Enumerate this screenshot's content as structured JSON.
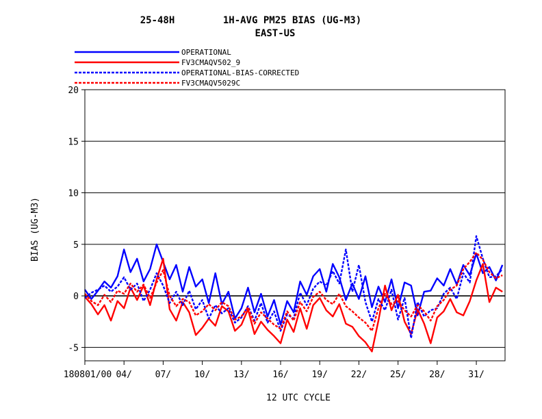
{
  "chart_data": {
    "type": "line",
    "title_line1_left": "25-48H",
    "title_line1_right": "1H-AVG PM25 BIAS (UG-M3)",
    "title_line2": "EAST-US",
    "xlabel": "12 UTC CYCLE",
    "ylabel": "BIAS (UG-M3)",
    "ylim": [
      -6.3,
      20
    ],
    "yticks": [
      -5,
      0,
      5,
      10,
      15,
      20
    ],
    "ytick_labels": [
      "-5",
      "0",
      "5",
      "10",
      "15",
      "20"
    ],
    "xlim": [
      1,
      33.2
    ],
    "xticks": [
      1,
      4,
      7,
      10,
      13,
      16,
      19,
      22,
      25,
      28,
      31
    ],
    "xtick_labels": [
      "180801/00",
      "04/",
      "07/",
      "10/",
      "13/",
      "16/",
      "19/",
      "22/",
      "25/",
      "28/",
      "31/"
    ],
    "grid": "horizontal",
    "legend_position": "top-left",
    "zero_line": true,
    "series": [
      {
        "name": "OPERATIONAL",
        "color": "#0000ff",
        "style": "solid",
        "x": [
          1.0,
          1.5,
          2.0,
          2.5,
          3.0,
          3.5,
          4.0,
          4.5,
          5.0,
          5.5,
          6.0,
          6.5,
          7.0,
          7.5,
          8.0,
          8.5,
          9.0,
          9.5,
          10.0,
          10.5,
          11.0,
          11.5,
          12.0,
          12.5,
          13.0,
          13.5,
          14.0,
          14.5,
          15.0,
          15.5,
          16.0,
          16.5,
          17.0,
          17.5,
          18.0,
          18.5,
          19.0,
          19.5,
          20.0,
          20.5,
          21.0,
          21.5,
          22.0,
          22.5,
          23.0,
          23.5,
          24.0,
          24.5,
          25.0,
          25.5,
          26.0,
          26.5,
          27.0,
          27.5,
          28.0,
          28.5,
          29.0,
          29.5,
          30.0,
          30.5,
          31.0,
          31.5,
          32.0,
          32.5,
          33.0
        ],
        "y": [
          0.6,
          -0.3,
          0.5,
          1.4,
          0.8,
          1.9,
          4.5,
          2.3,
          3.6,
          1.4,
          2.6,
          5.0,
          3.3,
          1.6,
          3.0,
          0.4,
          2.8,
          0.9,
          1.6,
          -0.7,
          2.2,
          -0.8,
          0.4,
          -2.2,
          -1.2,
          0.8,
          -1.6,
          0.2,
          -2.0,
          -0.4,
          -2.8,
          -0.5,
          -1.6,
          1.4,
          0.1,
          1.9,
          2.6,
          0.4,
          3.1,
          1.8,
          -0.4,
          1.2,
          -0.3,
          1.9,
          -1.1,
          0.9,
          -0.6,
          1.6,
          -1.2,
          1.3,
          1.0,
          -1.9,
          0.4,
          0.5,
          1.7,
          1.0,
          2.6,
          1.1,
          3.0,
          2.0,
          4.1,
          2.2,
          2.8,
          1.5,
          3.0
        ]
      },
      {
        "name": "FV3CMAQV502_9",
        "color": "#ff0000",
        "style": "solid",
        "x": [
          1.0,
          1.5,
          2.0,
          2.5,
          3.0,
          3.5,
          4.0,
          4.5,
          5.0,
          5.5,
          6.0,
          6.5,
          7.0,
          7.5,
          8.0,
          8.5,
          9.0,
          9.5,
          10.0,
          10.5,
          11.0,
          11.5,
          12.0,
          12.5,
          13.0,
          13.5,
          14.0,
          14.5,
          15.0,
          15.5,
          16.0,
          16.5,
          17.0,
          17.5,
          18.0,
          18.5,
          19.0,
          19.5,
          20.0,
          20.5,
          21.0,
          21.5,
          22.0,
          22.5,
          23.0,
          23.5,
          24.0,
          24.5,
          25.0,
          25.5,
          26.0,
          26.5,
          27.0,
          27.5,
          28.0,
          28.5,
          29.0,
          29.5,
          30.0,
          30.5,
          31.0,
          31.5,
          32.0,
          32.5,
          33.0
        ],
        "y": [
          -0.1,
          -0.8,
          -1.8,
          -0.9,
          -2.4,
          -0.5,
          -1.2,
          0.8,
          -0.4,
          1.0,
          -0.9,
          1.6,
          3.6,
          -1.3,
          -2.4,
          -0.6,
          -1.6,
          -3.8,
          -3.1,
          -2.2,
          -2.9,
          -1.0,
          -1.5,
          -3.4,
          -2.8,
          -1.3,
          -3.7,
          -2.5,
          -3.3,
          -3.9,
          -4.6,
          -2.3,
          -3.5,
          -1.2,
          -3.2,
          -0.9,
          -0.2,
          -1.4,
          -2.0,
          -0.8,
          -2.7,
          -3.0,
          -3.9,
          -4.5,
          -5.4,
          -2.4,
          1.0,
          -1.4,
          0.1,
          -2.5,
          -3.7,
          -1.3,
          -2.7,
          -4.6,
          -2.1,
          -1.5,
          -0.3,
          -1.6,
          -1.9,
          -0.5,
          1.5,
          3.1,
          -0.6,
          0.8,
          0.4
        ]
      },
      {
        "name": "OPERATIONAL-BIAS-CORRECTED",
        "color": "#0000ff",
        "style": "dashed",
        "x": [
          1.0,
          1.5,
          2.0,
          2.5,
          3.0,
          3.5,
          4.0,
          4.5,
          5.0,
          5.5,
          6.0,
          6.5,
          7.0,
          7.5,
          8.0,
          8.5,
          9.0,
          9.5,
          10.0,
          10.5,
          11.0,
          11.5,
          12.0,
          12.5,
          13.0,
          13.5,
          14.0,
          14.5,
          15.0,
          15.5,
          16.0,
          16.5,
          17.0,
          17.5,
          18.0,
          18.5,
          19.0,
          19.5,
          20.0,
          20.5,
          21.0,
          21.5,
          22.0,
          22.5,
          23.0,
          23.5,
          24.0,
          24.5,
          25.0,
          25.5,
          26.0,
          26.5,
          27.0,
          27.5,
          28.0,
          28.5,
          29.0,
          29.5,
          30.0,
          30.5,
          31.0,
          31.5,
          32.0,
          32.5,
          33.0
        ],
        "y": [
          -0.2,
          0.3,
          0.6,
          1.0,
          0.4,
          0.9,
          1.8,
          0.6,
          1.2,
          -0.5,
          0.6,
          2.2,
          1.0,
          -0.7,
          0.4,
          -0.9,
          0.5,
          -1.3,
          -0.4,
          -2.2,
          -0.9,
          -1.7,
          -1.2,
          -2.6,
          -2.1,
          -1.0,
          -2.4,
          -0.7,
          -2.6,
          -1.5,
          -3.4,
          -1.8,
          -2.2,
          0.3,
          -0.9,
          0.7,
          1.4,
          1.0,
          2.4,
          1.2,
          4.5,
          0.4,
          3.0,
          -0.6,
          -2.5,
          -0.3,
          -1.4,
          0.6,
          -2.3,
          -0.2,
          -4.1,
          -0.6,
          -2.0,
          -1.4,
          -1.2,
          0.2,
          0.8,
          -0.3,
          2.2,
          1.3,
          5.8,
          3.6,
          1.8,
          1.9,
          2.6
        ]
      },
      {
        "name": "FV3CMAQV5029C",
        "color": "#ff0000",
        "style": "dashed",
        "x": [
          1.0,
          1.5,
          2.0,
          2.5,
          3.0,
          3.5,
          4.0,
          4.5,
          5.0,
          5.5,
          6.0,
          6.5,
          7.0,
          7.5,
          8.0,
          8.5,
          9.0,
          9.5,
          10.0,
          10.5,
          11.0,
          11.5,
          12.0,
          12.5,
          13.0,
          13.5,
          14.0,
          14.5,
          15.0,
          15.5,
          16.0,
          16.5,
          17.0,
          17.5,
          18.0,
          18.5,
          19.0,
          19.5,
          20.0,
          20.5,
          21.0,
          21.5,
          22.0,
          22.5,
          23.0,
          23.5,
          24.0,
          24.5,
          25.0,
          25.5,
          26.0,
          26.5,
          27.0,
          27.5,
          28.0,
          28.5,
          29.0,
          29.5,
          30.0,
          30.5,
          31.0,
          31.5,
          32.0,
          32.5,
          33.0
        ],
        "y": [
          0.2,
          -0.5,
          -0.9,
          0.1,
          -0.6,
          0.5,
          0.2,
          1.2,
          0.4,
          1.1,
          -0.2,
          1.3,
          2.5,
          0.0,
          -1.0,
          -0.3,
          -0.6,
          -1.9,
          -1.5,
          -0.8,
          -1.4,
          -0.6,
          -1.0,
          -2.3,
          -2.0,
          -1.1,
          -2.7,
          -1.6,
          -2.2,
          -2.8,
          -3.2,
          -1.5,
          -2.4,
          -0.6,
          -1.5,
          -0.1,
          0.4,
          -0.4,
          -0.8,
          0.2,
          -1.0,
          -1.5,
          -2.1,
          -2.6,
          -3.4,
          -1.2,
          0.2,
          -0.8,
          -0.5,
          -1.4,
          -2.0,
          -0.9,
          -1.5,
          -2.4,
          -1.0,
          -0.4,
          0.6,
          1.0,
          2.6,
          3.3,
          4.2,
          3.5,
          2.3,
          1.7,
          2.0
        ]
      }
    ]
  }
}
